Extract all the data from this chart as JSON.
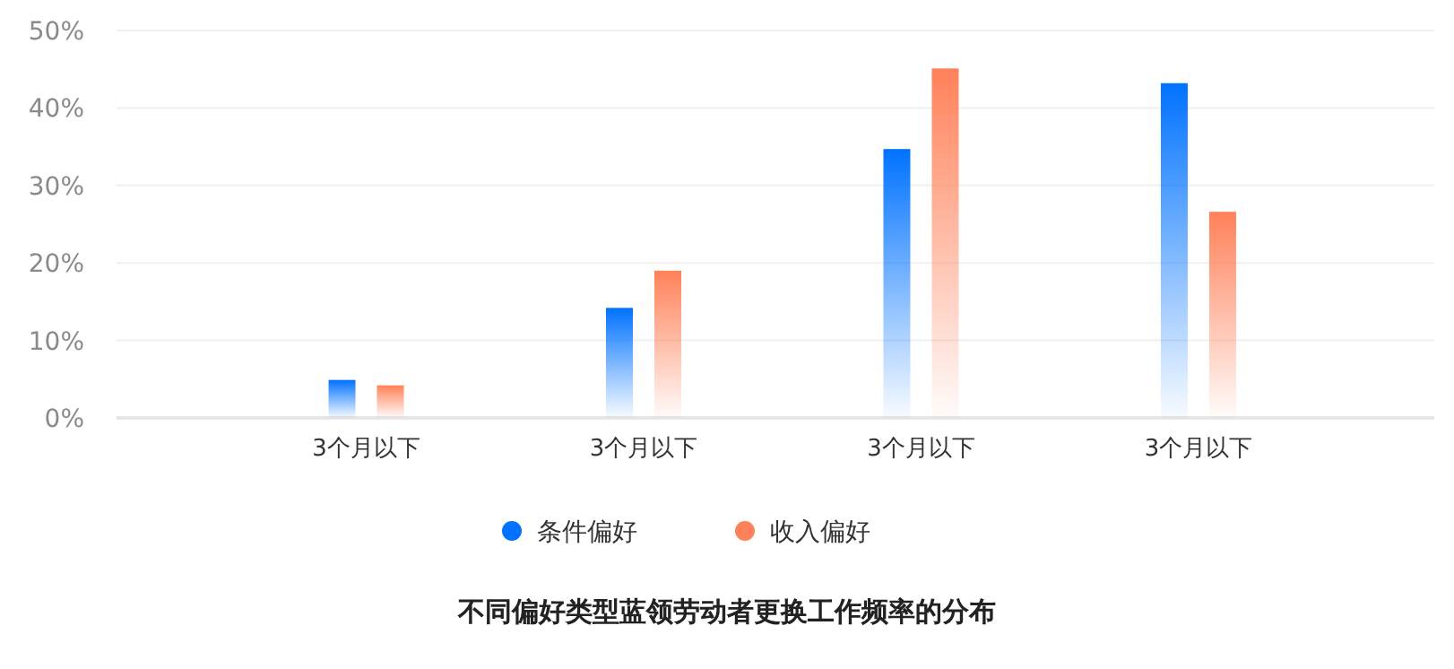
{
  "chart_data": {
    "type": "bar",
    "title": "不同偏好类型蓝领劳动者更换工作频率的分布",
    "categories": [
      "3个月以下",
      "3个月以下",
      "3个月以下",
      "3个月以下"
    ],
    "series": [
      {
        "name": "条件偏好",
        "color": "#0072ff",
        "values": [
          4.9,
          14.2,
          34.7,
          43.2
        ]
      },
      {
        "name": "收入偏好",
        "color": "#ff8159",
        "values": [
          4.2,
          19.0,
          45.1,
          26.6
        ]
      }
    ],
    "ylim": [
      0,
      50
    ],
    "yticks": [
      {
        "value": 0,
        "label": "0%"
      },
      {
        "value": 10,
        "label": "10%"
      },
      {
        "value": 20,
        "label": "20%"
      },
      {
        "value": 30,
        "label": "30%"
      },
      {
        "value": 40,
        "label": "40%"
      },
      {
        "value": 50,
        "label": "50%"
      }
    ],
    "grid": "y",
    "legend": "bottom"
  }
}
